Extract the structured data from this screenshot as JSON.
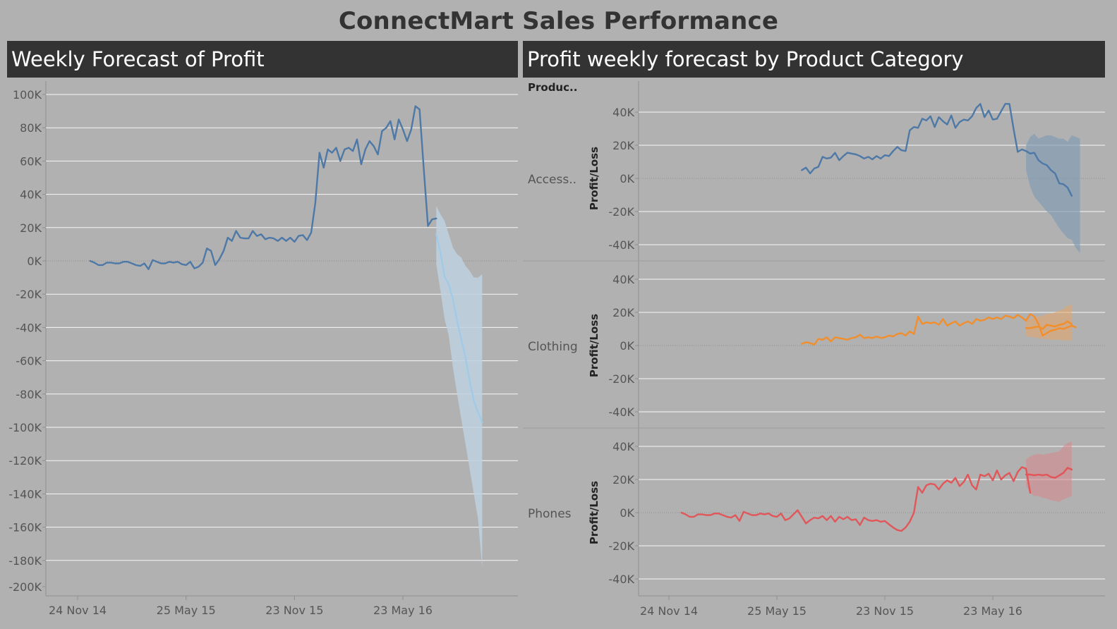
{
  "dashboard": {
    "title": "ConnectMart Sales Performance"
  },
  "left_panel": {
    "title": "Weekly Forecast of Profit"
  },
  "right_panel": {
    "title": "Profit weekly forecast by Product Category",
    "row_header": "Produc..",
    "rows": [
      "Access..",
      "Clothing",
      "Phones"
    ],
    "y_axis_label": "Profit/Loss"
  },
  "colors": {
    "background": "#b1b1b1",
    "header_bg": "#333333",
    "total_actual": "#4e79a7",
    "total_forecast": "#a0cbe8",
    "accessories": "#4e79a7",
    "clothing": "#f28e2b",
    "phones": "#e15759"
  },
  "chart_data": [
    {
      "type": "line",
      "title": "Weekly Forecast of Profit",
      "x_type": "date",
      "x_ticks": [
        "24 Nov 14",
        "25 May 15",
        "23 Nov 15",
        "23 May 16"
      ],
      "x_range": [
        "2014-11-24",
        "2016-11-28"
      ],
      "y_ticks": [
        "100K",
        "80K",
        "60K",
        "40K",
        "20K",
        "0K",
        "-20K",
        "-40K",
        "-60K",
        "-80K",
        "-100K",
        "-120K",
        "-140K",
        "-160K",
        "-180K",
        "-200K"
      ],
      "ylim": [
        -200000,
        100000
      ],
      "series": [
        {
          "role": "actual",
          "start_date": "2014-12-15",
          "step_days": 7,
          "values": [
            0,
            -1000,
            -2500,
            -2500,
            -1000,
            -1000,
            -1500,
            -1500,
            -500,
            -500,
            -1500,
            -2500,
            -3000,
            -1500,
            -5000,
            500,
            -500,
            -1500,
            -1500,
            -500,
            -1000,
            -500,
            -2000,
            -2500,
            -500,
            -4500,
            -3500,
            -1000,
            7500,
            6000,
            -2500,
            1000,
            6000,
            14000,
            12000,
            18000,
            14000,
            13500,
            13500,
            18000,
            15000,
            16000,
            13000,
            14000,
            13500,
            12000,
            14000,
            12000,
            14000,
            11500,
            15000,
            15500,
            12500,
            17000,
            35000,
            65000,
            56000,
            67000,
            65000,
            68000,
            60000,
            67000,
            68000,
            66000,
            73000,
            58000,
            67000,
            72000,
            69000,
            64000,
            78000,
            80000,
            84000,
            73000,
            85000,
            79000,
            72000,
            79000,
            93000,
            91000,
            55000,
            21000,
            25000,
            25500
          ]
        },
        {
          "role": "forecast",
          "start_date": "2016-07-18",
          "step_days": 7,
          "values": [
            16000,
            5000,
            -9500,
            -14000,
            -23000,
            -36000,
            -47000,
            -58000,
            -72000,
            -84000,
            -91000,
            -97000
          ],
          "band_upper": [
            33000,
            28000,
            24000,
            16000,
            8000,
            4000,
            2000,
            -3000,
            -6000,
            -10000,
            -10000,
            -8000
          ],
          "band_lower": [
            -2000,
            -18000,
            -35000,
            -45000,
            -64000,
            -80000,
            -95000,
            -110000,
            -125000,
            -140000,
            -155000,
            -184000
          ]
        }
      ]
    },
    {
      "type": "line",
      "title": "Profit weekly forecast by Product Category",
      "facet_label": "Access..",
      "ylabel": "Profit/Loss",
      "x_type": "date",
      "x_ticks": [
        "24 Nov 14",
        "25 May 15",
        "23 Nov 15",
        "23 May 16"
      ],
      "y_ticks": [
        "40K",
        "20K",
        "0K",
        "-20K",
        "-40K"
      ],
      "ylim": [
        -48000,
        48000
      ],
      "series": [
        {
          "role": "actual",
          "start_date": "2015-07-06",
          "step_days": 7,
          "values": [
            5000,
            6500,
            3000,
            6000,
            7000,
            13000,
            12000,
            12500,
            15500,
            11000,
            13500,
            15500,
            15000,
            14500,
            13500,
            12000,
            13000,
            11500,
            13500,
            12000,
            14000,
            13500,
            16500,
            19000,
            17000,
            16500,
            29000,
            31000,
            30500,
            36000,
            35000,
            37500,
            31000,
            37000,
            34500,
            32500,
            38000,
            30500,
            34000,
            35500,
            35000,
            37500,
            42500,
            45000,
            37000,
            41000,
            35500,
            36000,
            40500,
            45000,
            45000,
            30000,
            16000,
            17500,
            16500,
            15000,
            15500,
            11000,
            9000,
            8000,
            5000,
            3000,
            -3000,
            -3500,
            -5500,
            -10500
          ]
        },
        {
          "role": "forecast",
          "start_date": "2016-07-18",
          "step_days": 7,
          "band_upper": [
            20000,
            25000,
            27000,
            24000,
            25000,
            26000,
            26000,
            25000,
            24000,
            24000,
            22000,
            26000,
            25000,
            24000
          ],
          "band_lower": [
            5000,
            -5000,
            -11000,
            -14000,
            -17000,
            -20000,
            -22000,
            -26000,
            -30000,
            -33000,
            -36000,
            -37000,
            -42000,
            -45000
          ]
        }
      ]
    },
    {
      "type": "line",
      "facet_label": "Clothing",
      "ylabel": "Profit/Loss",
      "x_type": "date",
      "y_ticks": [
        "40K",
        "20K",
        "0K",
        "-20K",
        "-40K"
      ],
      "ylim": [
        -48000,
        48000
      ],
      "series": [
        {
          "role": "actual",
          "start_date": "2015-07-06",
          "step_days": 7,
          "values": [
            1000,
            2000,
            1500,
            500,
            4000,
            3500,
            5000,
            2500,
            5000,
            4500,
            4000,
            3500,
            4500,
            5000,
            6500,
            4500,
            5000,
            4500,
            5500,
            4500,
            5000,
            6000,
            5500,
            7000,
            7500,
            6000,
            8500,
            7000,
            17500,
            13000,
            14000,
            13500,
            14000,
            12500,
            16000,
            12000,
            13500,
            14500,
            12000,
            13500,
            14500,
            13000,
            16000,
            15000,
            15500,
            17000,
            16000,
            17000,
            16000,
            18000,
            17500,
            16500,
            18500,
            17000,
            15000,
            19000,
            17500,
            13000,
            6000,
            7500,
            9000,
            9500,
            10500,
            10000,
            11000,
            12000,
            11000
          ]
        },
        {
          "role": "forecast",
          "start_date": "2016-07-18",
          "step_days": 7,
          "values": [
            10500,
            10500,
            11000,
            11500,
            10000,
            12500,
            12000,
            11500,
            12500,
            13000,
            14500,
            13000
          ],
          "band_upper": [
            15000,
            16000,
            17000,
            17500,
            18000,
            19000,
            19500,
            20000,
            21000,
            22000,
            24000,
            24500
          ],
          "band_lower": [
            6000,
            5000,
            5000,
            4500,
            4000,
            4000,
            3500,
            3500,
            3500,
            3000,
            3000,
            3000
          ]
        }
      ]
    },
    {
      "type": "line",
      "facet_label": "Phones",
      "ylabel": "Profit/Loss",
      "x_type": "date",
      "x_ticks": [
        "24 Nov 14",
        "25 May 15",
        "23 Nov 15",
        "23 May 16"
      ],
      "y_ticks": [
        "40K",
        "20K",
        "0K",
        "-20K",
        "-40K"
      ],
      "ylim": [
        -48000,
        48000
      ],
      "series": [
        {
          "role": "actual",
          "start_date": "2014-12-15",
          "step_days": 7,
          "values": [
            0,
            -1000,
            -2500,
            -2500,
            -1000,
            -1000,
            -1500,
            -1500,
            -500,
            -500,
            -1500,
            -2500,
            -3000,
            -1500,
            -5000,
            500,
            -500,
            -1500,
            -1500,
            -500,
            -1000,
            -500,
            -2000,
            -2500,
            -500,
            -4500,
            -3500,
            -1000,
            1500,
            -2500,
            -6500,
            -4500,
            -3000,
            -3500,
            -2000,
            -4500,
            -2000,
            -5500,
            -2500,
            -4000,
            -2500,
            -4500,
            -4000,
            -7500,
            -3000,
            -4500,
            -5000,
            -4500,
            -5500,
            -5000,
            -7000,
            -9000,
            -10500,
            -11000,
            -9000,
            -5500,
            0,
            15500,
            12000,
            16500,
            17500,
            17000,
            14000,
            17500,
            19500,
            18000,
            21000,
            16000,
            18500,
            23000,
            16500,
            14000,
            23000,
            22000,
            23500,
            19500,
            25500,
            20000,
            22500,
            24000,
            19000,
            24500,
            27500,
            26500,
            12000
          ]
        },
        {
          "role": "forecast",
          "start_date": "2016-07-18",
          "step_days": 7,
          "values": [
            23000,
            23000,
            22500,
            23000,
            22500,
            23000,
            21500,
            21000,
            22500,
            24000,
            27000,
            26000
          ],
          "band_upper": [
            32000,
            34000,
            35000,
            35500,
            35000,
            35500,
            36000,
            36500,
            37000,
            40000,
            42000,
            43000
          ],
          "band_lower": [
            16000,
            12000,
            10000,
            10000,
            9000,
            8500,
            7500,
            7000,
            6500,
            8000,
            9000,
            10000
          ]
        }
      ]
    }
  ]
}
